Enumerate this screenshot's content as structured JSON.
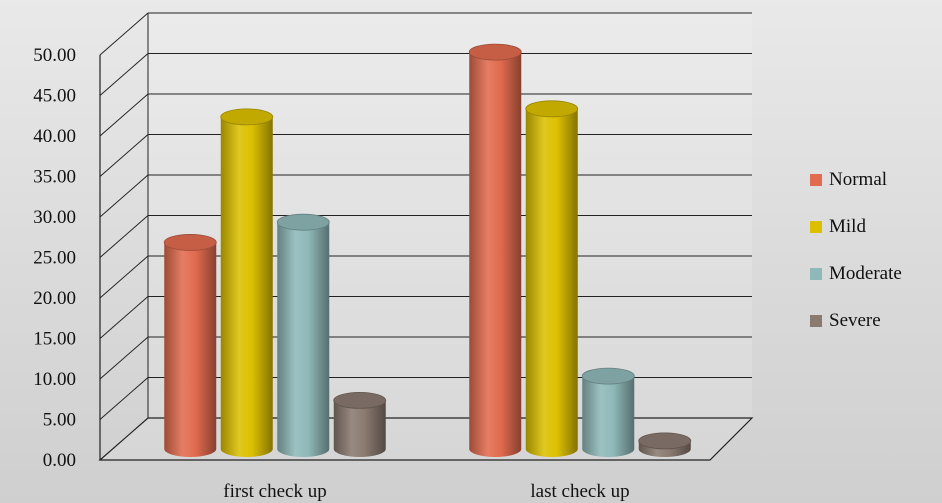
{
  "chart_data": {
    "type": "bar",
    "categories": [
      "first check up",
      "last check up"
    ],
    "series": [
      {
        "name": "Normal",
        "values": [
          25.5,
          49.0
        ],
        "color": "#e16b4f"
      },
      {
        "name": "Mild",
        "values": [
          41.0,
          42.0
        ],
        "color": "#dcc000"
      },
      {
        "name": "Moderate",
        "values": [
          28.0,
          9.0
        ],
        "color": "#8fb8b8"
      },
      {
        "name": "Severe",
        "values": [
          6.0,
          1.0
        ],
        "color": "#8a7a70"
      }
    ],
    "y_ticks": [
      "0.00",
      "5.00",
      "10.00",
      "15.00",
      "20.00",
      "25.00",
      "30.00",
      "35.00",
      "40.00",
      "45.00",
      "50.00"
    ],
    "ylim": [
      0,
      50
    ],
    "title": "",
    "xlabel": "",
    "ylabel": "",
    "grid": true,
    "legend_position": "right",
    "style": "3d-cylinder"
  }
}
